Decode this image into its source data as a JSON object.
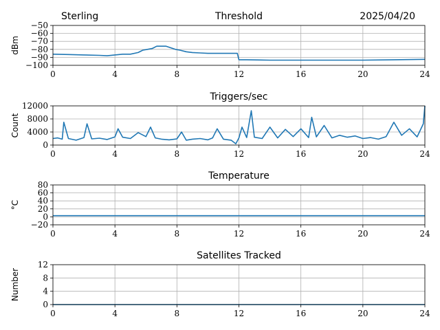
{
  "header": {
    "station": "Sterling",
    "date": "2025/04/20"
  },
  "colors": {
    "series": "#1f77b4",
    "grid": "#b0b0b0"
  },
  "chart_data": [
    {
      "type": "line",
      "title": "Threshold",
      "xlabel": "",
      "ylabel": "dBm",
      "xlim": [
        0,
        24
      ],
      "ylim": [
        -100,
        -50
      ],
      "xticks": [
        0,
        4,
        8,
        12,
        16,
        20,
        24
      ],
      "xtick_labels": [
        "0",
        "4",
        "8",
        "12",
        "16",
        "20",
        "24"
      ],
      "yticks": [
        -50,
        -60,
        -70,
        -80,
        -90,
        -100
      ],
      "ytick_labels": [
        "−50",
        "−60",
        "−70",
        "−80",
        "−90",
        "−100"
      ],
      "grid": true,
      "series": [
        {
          "x": [
            0,
            1,
            2,
            3,
            3.5,
            4,
            4.5,
            5,
            5.5,
            5.8,
            6.1,
            6.4,
            6.7,
            7,
            7.3,
            7.6,
            7.9,
            8.2,
            8.6,
            9,
            9.5,
            10,
            10.5,
            11,
            11.5,
            11.9,
            12.0,
            12.5,
            14,
            16,
            18,
            20,
            22,
            24
          ],
          "y": [
            -86,
            -86.5,
            -87,
            -87.5,
            -88,
            -87,
            -86,
            -86,
            -84,
            -81,
            -80,
            -79,
            -76,
            -76,
            -76,
            -78,
            -80,
            -81,
            -83,
            -84,
            -84.5,
            -85,
            -85,
            -85,
            -85,
            -85,
            -93,
            -93,
            -93.5,
            -93.5,
            -93.5,
            -93.5,
            -93,
            -92.5
          ]
        }
      ]
    },
    {
      "type": "line",
      "title": "Triggers/sec",
      "xlabel": "",
      "ylabel": "Count",
      "xlim": [
        0,
        24
      ],
      "ylim": [
        0,
        12000
      ],
      "xticks": [
        0,
        4,
        8,
        12,
        16,
        20,
        24
      ],
      "xtick_labels": [
        "0",
        "4",
        "8",
        "12",
        "16",
        "20",
        "24"
      ],
      "yticks": [
        0,
        4000,
        8000,
        12000
      ],
      "ytick_labels": [
        "0",
        "4000",
        "8000",
        "12000"
      ],
      "grid": true,
      "series": [
        {
          "x": [
            0,
            0.3,
            0.6,
            0.7,
            1,
            1.5,
            2,
            2.2,
            2.5,
            3,
            3.5,
            4,
            4.2,
            4.5,
            5,
            5.5,
            6,
            6.3,
            6.6,
            7,
            7.5,
            8,
            8.3,
            8.6,
            9,
            9.5,
            10,
            10.3,
            10.6,
            11,
            11.5,
            11.8,
            12.0,
            12.2,
            12.5,
            12.8,
            13,
            13.5,
            14,
            14.5,
            15,
            15.5,
            16,
            16.5,
            16.7,
            17,
            17.5,
            18,
            18.5,
            19,
            19.5,
            20,
            20.5,
            21,
            21.5,
            22,
            22.5,
            23,
            23.5,
            23.9,
            24
          ],
          "y": [
            2000,
            2200,
            1800,
            7000,
            2000,
            1500,
            2300,
            6500,
            1900,
            2100,
            1700,
            2500,
            5000,
            2400,
            2000,
            3800,
            2600,
            5500,
            2200,
            1800,
            1600,
            1900,
            4000,
            1500,
            1800,
            2000,
            1600,
            2200,
            5000,
            1800,
            1500,
            400,
            2200,
            5500,
            2300,
            10500,
            2400,
            2000,
            5500,
            2200,
            4800,
            2600,
            5000,
            2300,
            8500,
            2500,
            6000,
            2200,
            3000,
            2400,
            2800,
            2000,
            2300,
            1800,
            2600,
            7000,
            3000,
            5000,
            2500,
            6500,
            12000
          ]
        }
      ]
    },
    {
      "type": "line",
      "title": "Temperature",
      "xlabel": "",
      "ylabel": "°C",
      "xlim": [
        0,
        24
      ],
      "ylim": [
        -20,
        80
      ],
      "xticks": [
        0,
        4,
        8,
        12,
        16,
        20,
        24
      ],
      "xtick_labels": [
        "0",
        "4",
        "8",
        "12",
        "16",
        "20",
        "24"
      ],
      "yticks": [
        80,
        60,
        40,
        20,
        0,
        -20
      ],
      "ytick_labels": [
        "80",
        "60",
        "40",
        "20",
        "0",
        "−20"
      ],
      "grid": true,
      "series": [
        {
          "x": [
            0,
            24
          ],
          "y": [
            3,
            3
          ]
        }
      ]
    },
    {
      "type": "line",
      "title": "Satellites Tracked",
      "xlabel": "",
      "ylabel": "Number",
      "xlim": [
        0,
        24
      ],
      "ylim": [
        0,
        12
      ],
      "xticks": [
        0,
        4,
        8,
        12,
        16,
        20,
        24
      ],
      "xtick_labels": [
        "0",
        "4",
        "8",
        "12",
        "16",
        "20",
        "24"
      ],
      "yticks": [
        0,
        4,
        8,
        12
      ],
      "ytick_labels": [
        "0",
        "4",
        "8",
        "12"
      ],
      "grid": true,
      "series": [
        {
          "x": [
            0,
            24
          ],
          "y": [
            0,
            0
          ]
        }
      ]
    }
  ]
}
